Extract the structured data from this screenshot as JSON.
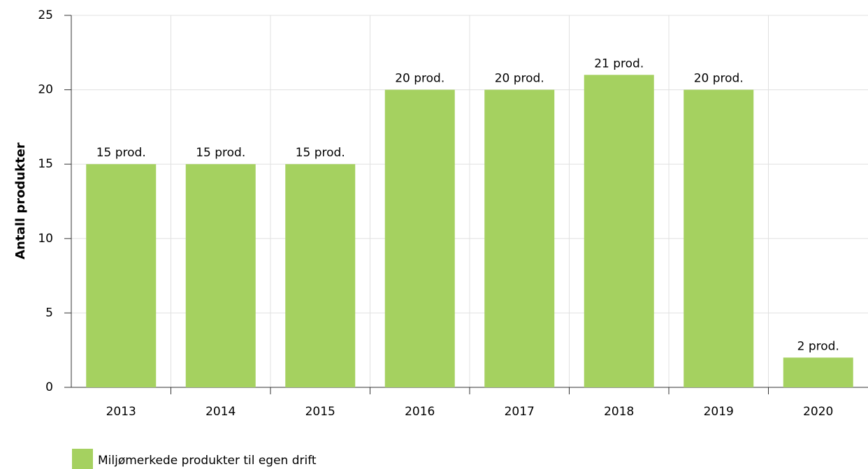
{
  "chart_data": {
    "type": "bar",
    "ylabel": "Antall produkter",
    "categories": [
      "2013",
      "2014",
      "2015",
      "2016",
      "2017",
      "2018",
      "2019",
      "2020"
    ],
    "series": [
      {
        "name": "Miljømerkede produkter til egen drift",
        "color": "#a5d160",
        "values": [
          15,
          15,
          15,
          20,
          20,
          21,
          20,
          2
        ],
        "value_labels": [
          "15 prod.",
          "15 prod.",
          "15 prod.",
          "20 prod.",
          "20 prod.",
          "21 prod.",
          "20 prod.",
          "2 prod."
        ]
      }
    ],
    "ylim": [
      0,
      25
    ],
    "yticks": [
      0,
      5,
      10,
      15,
      20,
      25
    ],
    "grid": true,
    "legend": "bottom-left"
  }
}
